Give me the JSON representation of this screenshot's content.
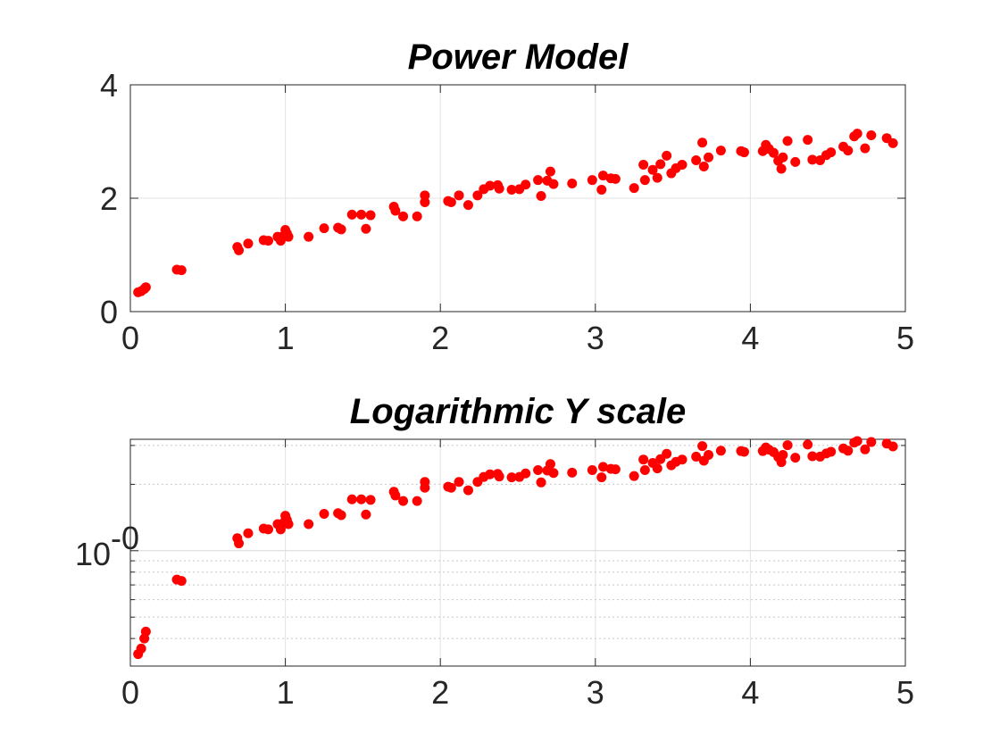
{
  "chart_data": [
    {
      "type": "scatter",
      "title": "Power Model",
      "xlabel": "",
      "ylabel": "",
      "xlim": [
        0,
        5
      ],
      "ylim": [
        0,
        4
      ],
      "yscale": "linear",
      "grid": true,
      "x_ticks": [
        0,
        1,
        2,
        3,
        4,
        5
      ],
      "x_tick_labels": [
        "0",
        "1",
        "2",
        "3",
        "4",
        "5"
      ],
      "y_ticks": [
        0,
        2,
        4
      ],
      "y_tick_labels": [
        "0",
        "2",
        "4"
      ],
      "series": [
        {
          "color": "#ff0000",
          "marker": "filled-circle",
          "points": [
            [
              0.05,
              0.34
            ],
            [
              0.07,
              0.36
            ],
            [
              0.09,
              0.4
            ],
            [
              0.1,
              0.43
            ],
            [
              0.3,
              0.74
            ],
            [
              0.33,
              0.73
            ],
            [
              0.69,
              1.14
            ],
            [
              0.7,
              1.08
            ],
            [
              0.76,
              1.2
            ],
            [
              0.86,
              1.26
            ],
            [
              0.89,
              1.25
            ],
            [
              0.95,
              1.32
            ],
            [
              0.97,
              1.25
            ],
            [
              0.99,
              1.34
            ],
            [
              1.0,
              1.44
            ],
            [
              1.01,
              1.38
            ],
            [
              1.02,
              1.32
            ],
            [
              1.15,
              1.32
            ],
            [
              1.25,
              1.47
            ],
            [
              1.34,
              1.48
            ],
            [
              1.36,
              1.45
            ],
            [
              1.43,
              1.71
            ],
            [
              1.49,
              1.71
            ],
            [
              1.52,
              1.46
            ],
            [
              1.55,
              1.7
            ],
            [
              1.7,
              1.85
            ],
            [
              1.71,
              1.78
            ],
            [
              1.76,
              1.68
            ],
            [
              1.85,
              1.68
            ],
            [
              1.9,
              1.93
            ],
            [
              1.9,
              2.05
            ],
            [
              2.05,
              1.95
            ],
            [
              2.07,
              1.93
            ],
            [
              2.12,
              2.05
            ],
            [
              2.18,
              1.88
            ],
            [
              2.24,
              2.05
            ],
            [
              2.28,
              2.16
            ],
            [
              2.32,
              2.22
            ],
            [
              2.37,
              2.23
            ],
            [
              2.38,
              2.17
            ],
            [
              2.46,
              2.15
            ],
            [
              2.51,
              2.16
            ],
            [
              2.55,
              2.24
            ],
            [
              2.63,
              2.32
            ],
            [
              2.65,
              2.04
            ],
            [
              2.69,
              2.31
            ],
            [
              2.71,
              2.47
            ],
            [
              2.73,
              2.25
            ],
            [
              2.85,
              2.26
            ],
            [
              2.98,
              2.32
            ],
            [
              3.04,
              2.15
            ],
            [
              3.05,
              2.4
            ],
            [
              3.1,
              2.35
            ],
            [
              3.13,
              2.34
            ],
            [
              3.25,
              2.18
            ],
            [
              3.31,
              2.59
            ],
            [
              3.32,
              2.32
            ],
            [
              3.37,
              2.5
            ],
            [
              3.4,
              2.36
            ],
            [
              3.42,
              2.6
            ],
            [
              3.46,
              2.75
            ],
            [
              3.49,
              2.44
            ],
            [
              3.52,
              2.53
            ],
            [
              3.56,
              2.59
            ],
            [
              3.65,
              2.67
            ],
            [
              3.69,
              2.98
            ],
            [
              3.7,
              2.56
            ],
            [
              3.73,
              2.72
            ],
            [
              3.81,
              2.84
            ],
            [
              3.94,
              2.83
            ],
            [
              3.96,
              2.81
            ],
            [
              4.08,
              2.83
            ],
            [
              4.1,
              2.94
            ],
            [
              4.12,
              2.87
            ],
            [
              4.15,
              2.8
            ],
            [
              4.18,
              2.66
            ],
            [
              4.2,
              2.52
            ],
            [
              4.21,
              2.72
            ],
            [
              4.24,
              3.01
            ],
            [
              4.29,
              2.64
            ],
            [
              4.37,
              3.03
            ],
            [
              4.4,
              2.68
            ],
            [
              4.45,
              2.67
            ],
            [
              4.49,
              2.76
            ],
            [
              4.52,
              2.81
            ],
            [
              4.6,
              2.91
            ],
            [
              4.63,
              2.84
            ],
            [
              4.67,
              3.09
            ],
            [
              4.69,
              3.14
            ],
            [
              4.74,
              2.88
            ],
            [
              4.78,
              3.11
            ],
            [
              4.88,
              3.06
            ],
            [
              4.92,
              2.97
            ]
          ]
        }
      ]
    },
    {
      "type": "scatter",
      "title": "Logarithmic Y scale",
      "xlabel": "",
      "ylabel": "",
      "xlim": [
        0,
        5
      ],
      "ylim": [
        0.3,
        3.2
      ],
      "yscale": "log",
      "grid": true,
      "x_ticks": [
        0,
        1,
        2,
        3,
        4,
        5
      ],
      "x_tick_labels": [
        "0",
        "1",
        "2",
        "3",
        "4",
        "5"
      ],
      "y_ticks": [
        1
      ],
      "y_tick_labels": [
        "10"
      ],
      "y_tick_exponents": [
        "-0"
      ],
      "y_minor_ticks": [
        0.4,
        0.5,
        0.6,
        0.7,
        0.8,
        0.9,
        2,
        3
      ],
      "series": [
        {
          "color": "#ff0000",
          "marker": "filled-circle",
          "points": "same as Power Model"
        }
      ]
    }
  ]
}
